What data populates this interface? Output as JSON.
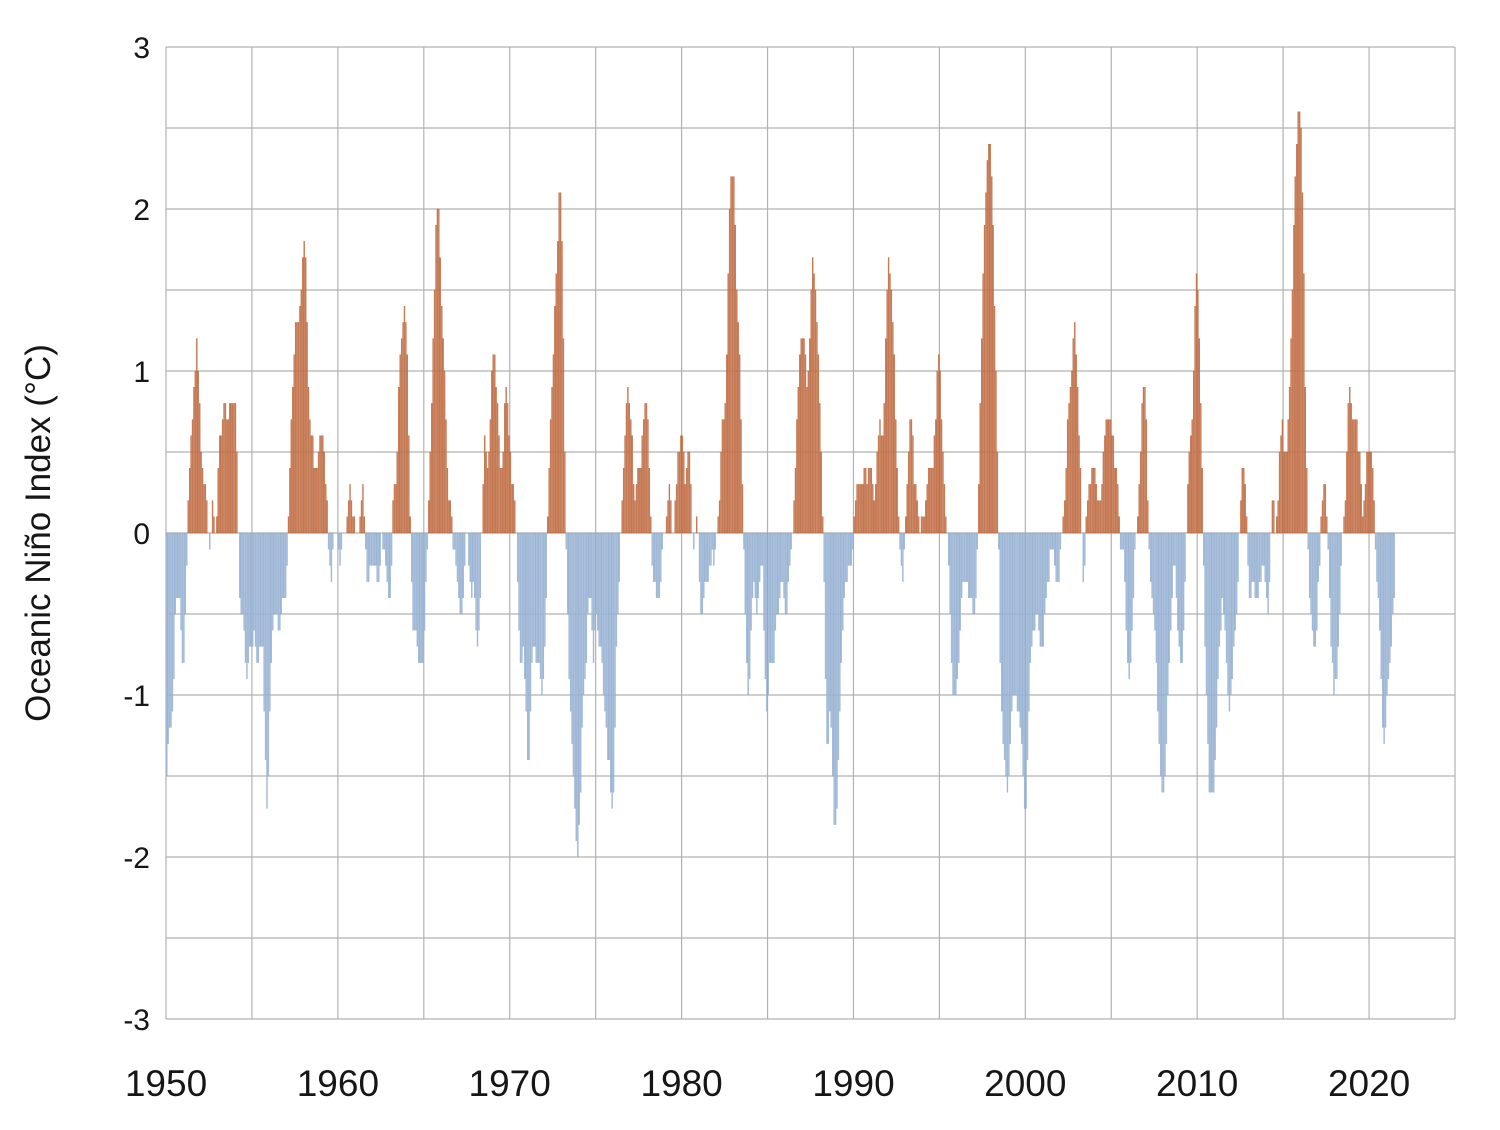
{
  "chart_data": {
    "type": "bar",
    "title": "",
    "xlabel": "",
    "ylabel": "Oceanic Niño Index (°C)",
    "ylim": [
      -3,
      3
    ],
    "y_tick_labels": [
      "3",
      "2",
      "1",
      "0",
      "-1",
      "-2",
      "-3"
    ],
    "y_gridline_step": 0.5,
    "x_range_years": [
      1950,
      2025
    ],
    "x_gridline_step_years": 5,
    "x_tick_years": [
      "1950",
      "1960",
      "1970",
      "1980",
      "1990",
      "2000",
      "2010",
      "2020"
    ],
    "grid_on": true,
    "legend": "none",
    "grid_color": "#b2b2b2",
    "positive_bar_fill": "#d8875e",
    "positive_bar_edge": "#ac5a31",
    "negative_bar_fill": "#b0c6e1",
    "negative_bar_edge": "#82a1c7",
    "series_name": "Oceanic Niño Index (monthly, °C)",
    "start_year": 1950,
    "monthly_oni_by_year": [
      [
        -1.5,
        -1.3,
        -1.2,
        -1.2,
        -1.1,
        -0.9,
        -0.5,
        -0.4,
        -0.4,
        -0.4,
        -0.6,
        -0.8
      ],
      [
        -0.8,
        -0.5,
        -0.2,
        0.2,
        0.4,
        0.6,
        0.7,
        0.9,
        1.0,
        1.2,
        1.0,
        0.8
      ],
      [
        0.5,
        0.4,
        0.3,
        0.3,
        0.2,
        0.0,
        -0.1,
        0.0,
        0.2,
        0.1,
        0.0,
        0.1
      ],
      [
        0.4,
        0.6,
        0.6,
        0.7,
        0.8,
        0.8,
        0.7,
        0.7,
        0.8,
        0.8,
        0.8,
        0.8
      ],
      [
        0.8,
        0.5,
        0.0,
        -0.4,
        -0.5,
        -0.5,
        -0.6,
        -0.8,
        -0.9,
        -0.8,
        -0.7,
        -0.7
      ],
      [
        -0.7,
        -0.6,
        -0.7,
        -0.8,
        -0.8,
        -0.7,
        -0.7,
        -0.7,
        -1.1,
        -1.4,
        -1.7,
        -1.5
      ],
      [
        -1.1,
        -0.8,
        -0.6,
        -0.5,
        -0.5,
        -0.5,
        -0.6,
        -0.6,
        -0.5,
        -0.4,
        -0.4,
        -0.4
      ],
      [
        -0.2,
        0.1,
        0.4,
        0.7,
        0.9,
        1.1,
        1.3,
        1.3,
        1.3,
        1.4,
        1.5,
        1.7
      ],
      [
        1.8,
        1.7,
        1.3,
        0.9,
        0.7,
        0.6,
        0.6,
        0.4,
        0.4,
        0.4,
        0.5,
        0.6
      ],
      [
        0.6,
        0.6,
        0.5,
        0.3,
        0.2,
        -0.1,
        -0.2,
        -0.3,
        -0.1,
        0.0,
        0.0,
        0.0
      ],
      [
        -0.1,
        -0.2,
        -0.1,
        0.0,
        0.0,
        0.0,
        0.1,
        0.2,
        0.3,
        0.2,
        0.1,
        0.1
      ],
      [
        0.0,
        0.0,
        0.0,
        0.1,
        0.2,
        0.3,
        0.1,
        -0.1,
        -0.3,
        -0.3,
        -0.2,
        -0.2
      ],
      [
        -0.2,
        -0.2,
        -0.2,
        -0.3,
        -0.3,
        -0.2,
        0.0,
        -0.1,
        -0.1,
        -0.2,
        -0.3,
        -0.4
      ],
      [
        -0.4,
        -0.2,
        0.2,
        0.3,
        0.3,
        0.5,
        0.9,
        1.1,
        1.2,
        1.3,
        1.4,
        1.3
      ],
      [
        1.1,
        0.6,
        0.1,
        -0.3,
        -0.6,
        -0.6,
        -0.6,
        -0.7,
        -0.8,
        -0.8,
        -0.8,
        -0.8
      ],
      [
        -0.6,
        -0.3,
        -0.1,
        0.2,
        0.5,
        0.8,
        1.2,
        1.5,
        1.9,
        2.0,
        2.0,
        1.7
      ],
      [
        1.4,
        1.2,
        1.0,
        0.7,
        0.4,
        0.2,
        0.2,
        0.1,
        -0.1,
        -0.1,
        -0.2,
        -0.3
      ],
      [
        -0.4,
        -0.5,
        -0.5,
        -0.4,
        -0.2,
        0.0,
        0.0,
        -0.2,
        -0.3,
        -0.4,
        -0.3,
        -0.4
      ],
      [
        -0.6,
        -0.7,
        -0.6,
        -0.4,
        0.0,
        0.3,
        0.6,
        0.5,
        0.4,
        0.5,
        0.7,
        1.0
      ],
      [
        1.1,
        1.1,
        0.9,
        0.8,
        0.6,
        0.4,
        0.4,
        0.5,
        0.8,
        0.9,
        0.8,
        0.6
      ],
      [
        0.5,
        0.3,
        0.3,
        0.2,
        0.0,
        -0.3,
        -0.6,
        -0.8,
        -0.8,
        -0.7,
        -0.9,
        -1.1
      ],
      [
        -1.4,
        -1.4,
        -1.1,
        -0.8,
        -0.7,
        -0.7,
        -0.8,
        -0.8,
        -0.8,
        -0.9,
        -1.0,
        -0.9
      ],
      [
        -0.7,
        -0.4,
        0.1,
        0.4,
        0.7,
        0.9,
        1.1,
        1.4,
        1.6,
        1.8,
        2.1,
        2.1
      ],
      [
        1.8,
        1.2,
        0.5,
        -0.1,
        -0.5,
        -0.9,
        -1.1,
        -1.3,
        -1.5,
        -1.7,
        -1.9,
        -2.0
      ],
      [
        -1.8,
        -1.6,
        -1.2,
        -1.0,
        -0.9,
        -0.8,
        -0.5,
        -0.4,
        -0.4,
        -0.6,
        -0.8,
        -0.6
      ],
      [
        -0.5,
        -0.6,
        -0.7,
        -0.7,
        -0.8,
        -1.0,
        -1.1,
        -1.2,
        -1.4,
        -1.4,
        -1.6,
        -1.7
      ],
      [
        -1.6,
        -1.2,
        -0.7,
        -0.5,
        -0.3,
        0.0,
        0.2,
        0.4,
        0.6,
        0.8,
        0.9,
        0.8
      ],
      [
        0.7,
        0.6,
        0.3,
        0.2,
        0.3,
        0.4,
        0.4,
        0.4,
        0.6,
        0.7,
        0.8,
        0.8
      ],
      [
        0.7,
        0.4,
        0.1,
        -0.2,
        -0.3,
        -0.3,
        -0.4,
        -0.4,
        -0.4,
        -0.3,
        -0.1,
        0.0
      ],
      [
        0.0,
        0.1,
        0.2,
        0.3,
        0.2,
        0.0,
        0.0,
        0.2,
        0.3,
        0.5,
        0.5,
        0.6
      ],
      [
        0.6,
        0.5,
        0.3,
        0.4,
        0.5,
        0.5,
        0.3,
        0.0,
        -0.1,
        0.0,
        0.1,
        0.0
      ],
      [
        -0.3,
        -0.5,
        -0.5,
        -0.4,
        -0.3,
        -0.3,
        -0.3,
        -0.2,
        -0.2,
        -0.1,
        -0.2,
        -0.1
      ],
      [
        0.0,
        0.1,
        0.2,
        0.5,
        0.7,
        0.7,
        0.8,
        1.1,
        1.6,
        2.0,
        2.2,
        2.2
      ],
      [
        2.2,
        1.9,
        1.5,
        1.3,
        1.1,
        0.7,
        0.3,
        -0.1,
        -0.5,
        -0.8,
        -1.0,
        -0.9
      ],
      [
        -0.6,
        -0.4,
        -0.3,
        -0.4,
        -0.5,
        -0.4,
        -0.3,
        -0.2,
        -0.2,
        -0.6,
        -0.9,
        -1.1
      ],
      [
        -1.0,
        -0.8,
        -0.8,
        -0.8,
        -0.8,
        -0.6,
        -0.5,
        -0.5,
        -0.4,
        -0.3,
        -0.3,
        -0.4
      ],
      [
        -0.5,
        -0.5,
        -0.3,
        -0.2,
        -0.1,
        0.0,
        0.2,
        0.4,
        0.7,
        0.9,
        1.1,
        1.2
      ],
      [
        1.2,
        1.2,
        1.1,
        0.9,
        1.0,
        1.2,
        1.5,
        1.7,
        1.6,
        1.5,
        1.3,
        1.1
      ],
      [
        0.8,
        0.5,
        0.1,
        -0.3,
        -0.9,
        -1.3,
        -1.3,
        -1.1,
        -1.2,
        -1.5,
        -1.8,
        -1.8
      ],
      [
        -1.7,
        -1.4,
        -1.1,
        -0.8,
        -0.6,
        -0.4,
        -0.3,
        -0.3,
        -0.2,
        -0.2,
        -0.2,
        -0.1
      ],
      [
        0.1,
        0.2,
        0.3,
        0.3,
        0.3,
        0.3,
        0.3,
        0.4,
        0.4,
        0.3,
        0.4,
        0.4
      ],
      [
        0.4,
        0.3,
        0.2,
        0.3,
        0.5,
        0.6,
        0.7,
        0.6,
        0.6,
        0.8,
        1.2,
        1.5
      ],
      [
        1.7,
        1.6,
        1.5,
        1.3,
        1.1,
        0.7,
        0.4,
        0.1,
        -0.1,
        -0.2,
        -0.3,
        -0.1
      ],
      [
        0.1,
        0.3,
        0.5,
        0.7,
        0.7,
        0.6,
        0.3,
        0.3,
        0.2,
        0.1,
        0.0,
        0.1
      ],
      [
        0.1,
        0.1,
        0.2,
        0.3,
        0.4,
        0.4,
        0.4,
        0.4,
        0.6,
        0.7,
        1.0,
        1.1
      ],
      [
        1.0,
        0.7,
        0.5,
        0.3,
        0.1,
        0.0,
        -0.2,
        -0.5,
        -0.8,
        -1.0,
        -1.0,
        -1.0
      ],
      [
        -0.9,
        -0.8,
        -0.6,
        -0.4,
        -0.3,
        -0.3,
        -0.3,
        -0.3,
        -0.4,
        -0.4,
        -0.4,
        -0.5
      ],
      [
        -0.5,
        -0.4,
        -0.1,
        0.3,
        0.8,
        1.2,
        1.6,
        1.9,
        2.1,
        2.3,
        2.4,
        2.4
      ],
      [
        2.2,
        1.9,
        1.4,
        1.0,
        0.5,
        -0.1,
        -0.8,
        -1.1,
        -1.3,
        -1.4,
        -1.5,
        -1.6
      ],
      [
        -1.5,
        -1.3,
        -1.1,
        -1.0,
        -1.0,
        -1.0,
        -1.1,
        -1.1,
        -1.2,
        -1.3,
        -1.5,
        -1.7
      ],
      [
        -1.7,
        -1.4,
        -1.1,
        -0.8,
        -0.7,
        -0.6,
        -0.6,
        -0.5,
        -0.5,
        -0.6,
        -0.7,
        -0.7
      ],
      [
        -0.7,
        -0.5,
        -0.4,
        -0.3,
        -0.3,
        -0.1,
        -0.1,
        -0.1,
        -0.2,
        -0.3,
        -0.3,
        -0.3
      ],
      [
        -0.1,
        0.0,
        0.1,
        0.2,
        0.4,
        0.7,
        0.8,
        0.9,
        1.0,
        1.2,
        1.3,
        1.1
      ],
      [
        0.9,
        0.6,
        0.4,
        0.0,
        -0.3,
        -0.2,
        0.1,
        0.2,
        0.3,
        0.3,
        0.4,
        0.4
      ],
      [
        0.4,
        0.3,
        0.2,
        0.2,
        0.2,
        0.3,
        0.5,
        0.6,
        0.7,
        0.7,
        0.7,
        0.7
      ],
      [
        0.6,
        0.6,
        0.4,
        0.4,
        0.3,
        0.1,
        -0.1,
        -0.1,
        -0.1,
        -0.3,
        -0.6,
        -0.8
      ],
      [
        -0.9,
        -0.8,
        -0.6,
        -0.4,
        -0.1,
        0.0,
        0.1,
        0.3,
        0.5,
        0.8,
        0.9,
        0.9
      ],
      [
        0.7,
        0.2,
        -0.1,
        -0.3,
        -0.4,
        -0.5,
        -0.6,
        -0.8,
        -1.1,
        -1.3,
        -1.5,
        -1.6
      ],
      [
        -1.6,
        -1.5,
        -1.3,
        -1.0,
        -0.8,
        -0.6,
        -0.4,
        -0.2,
        -0.2,
        -0.4,
        -0.6,
        -0.7
      ],
      [
        -0.8,
        -0.8,
        -0.6,
        -0.3,
        0.0,
        0.3,
        0.5,
        0.6,
        0.7,
        1.0,
        1.4,
        1.6
      ],
      [
        1.5,
        1.2,
        0.8,
        0.4,
        -0.2,
        -0.7,
        -1.0,
        -1.3,
        -1.6,
        -1.6,
        -1.6,
        -1.6
      ],
      [
        -1.4,
        -1.2,
        -0.9,
        -0.7,
        -0.6,
        -0.4,
        -0.5,
        -0.6,
        -0.8,
        -1.0,
        -1.1,
        -1.0
      ],
      [
        -0.9,
        -0.7,
        -0.6,
        -0.5,
        -0.3,
        0.0,
        0.2,
        0.4,
        0.4,
        0.3,
        0.1,
        -0.2
      ],
      [
        -0.4,
        -0.4,
        -0.3,
        -0.3,
        -0.4,
        -0.4,
        -0.4,
        -0.3,
        -0.3,
        -0.2,
        -0.2,
        -0.3
      ],
      [
        -0.4,
        -0.5,
        -0.3,
        0.0,
        0.2,
        0.2,
        0.0,
        0.1,
        0.2,
        0.5,
        0.6,
        0.7
      ],
      [
        0.5,
        0.5,
        0.5,
        0.7,
        0.9,
        1.2,
        1.5,
        1.9,
        2.2,
        2.4,
        2.6,
        2.6
      ],
      [
        2.5,
        2.1,
        1.6,
        0.9,
        0.4,
        -0.1,
        -0.4,
        -0.5,
        -0.6,
        -0.7,
        -0.7,
        -0.6
      ],
      [
        -0.3,
        -0.2,
        0.1,
        0.2,
        0.3,
        0.3,
        0.1,
        -0.1,
        -0.4,
        -0.7,
        -0.8,
        -1.0
      ],
      [
        -0.9,
        -0.9,
        -0.7,
        -0.5,
        -0.2,
        0.0,
        0.1,
        0.2,
        0.5,
        0.8,
        0.9,
        0.8
      ],
      [
        0.7,
        0.7,
        0.7,
        0.7,
        0.5,
        0.5,
        0.3,
        0.1,
        0.2,
        0.3,
        0.5,
        0.5
      ],
      [
        0.5,
        0.5,
        0.4,
        0.2,
        -0.1,
        -0.3,
        -0.4,
        -0.6,
        -0.9,
        -1.2,
        -1.3,
        -1.2
      ],
      [
        -1.0,
        -0.9,
        -0.8,
        -0.7,
        -0.5,
        -0.4
      ]
    ]
  }
}
